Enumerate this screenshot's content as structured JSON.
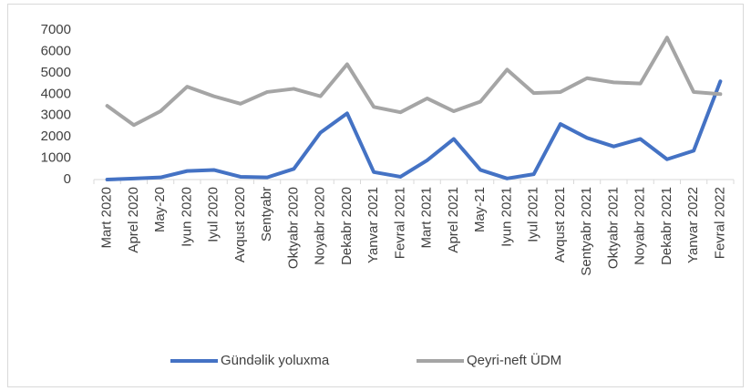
{
  "chart_data": {
    "type": "line",
    "categories": [
      "Mart 2020",
      "Aprel 2020",
      "May-20",
      "Iyun 2020",
      "Iyul 2020",
      "Avqust 2020",
      "Sentyabr",
      "Oktyabr 2020",
      "Noyabr 2020",
      "Dekabr 2020",
      "Yanvar 2021",
      "Fevral 2021",
      "Mart 2021",
      "Aprel 2021",
      "May-21",
      "Iyun 2021",
      "Iyul 2021",
      "Avqust 2021",
      "Sentyabr 2021",
      "Oktyabr 2021",
      "Noyabr 2021",
      "Dekabr 2021",
      "Yanvar 2022",
      "Fevral 2022"
    ],
    "series": [
      {
        "name": "Gündəlik yoluxma",
        "color": "#4472c4",
        "values": [
          0,
          50,
          100,
          400,
          450,
          130,
          100,
          500,
          2200,
          3100,
          350,
          130,
          900,
          1900,
          450,
          50,
          250,
          2600,
          1950,
          1550,
          1900,
          950,
          1350,
          4600
        ]
      },
      {
        "name": "Qeyri-neft ÜDM",
        "color": "#a5a5a5",
        "values": [
          3450,
          2550,
          3200,
          4350,
          3900,
          3550,
          4100,
          4250,
          3900,
          5400,
          3400,
          3150,
          3800,
          3200,
          3650,
          5150,
          4050,
          4100,
          4750,
          4550,
          4500,
          6650,
          4100,
          4000
        ]
      }
    ],
    "ylim": [
      0,
      7000
    ],
    "yticks": [
      0,
      1000,
      2000,
      3000,
      4000,
      5000,
      6000,
      7000
    ],
    "grid": false,
    "legend": "bottom"
  }
}
